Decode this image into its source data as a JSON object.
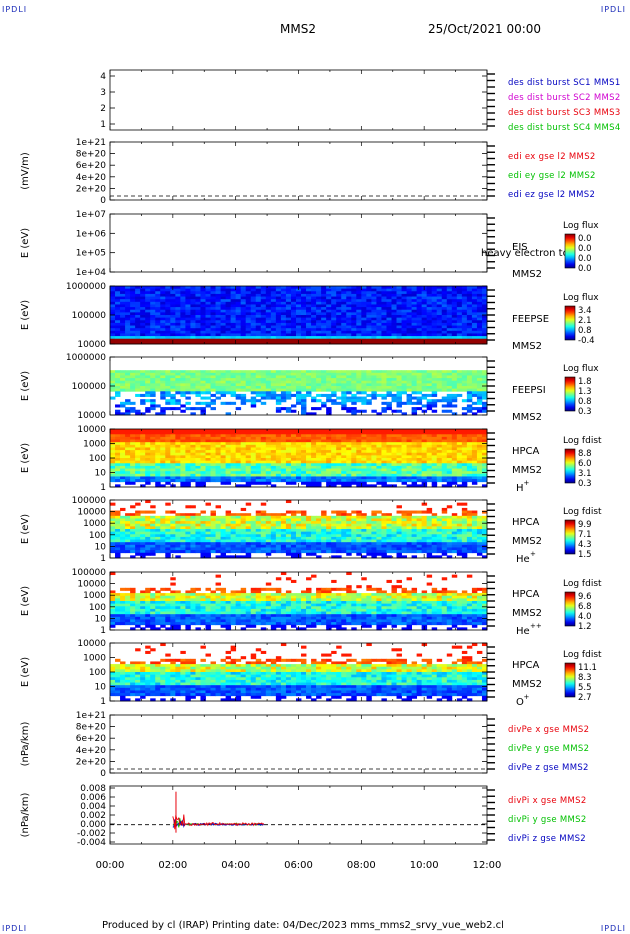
{
  "corners": {
    "tl": "IPDLI",
    "tr": "IPDLI",
    "bl": "IPDLI",
    "br": "IPDLI"
  },
  "header": {
    "spacecraft": "MMS2",
    "date": "25/Oct/2021 00:00"
  },
  "footer": {
    "text": "Produced by cl (IRAP)   Printing date: 04/Dec/2023   mms_mms2_srvy_vue_web2.cl"
  },
  "colors": {
    "red": "#e8000b",
    "green": "#00c000",
    "blue": "#0000c0",
    "magenta": "#d000d0"
  },
  "chart_data": [
    {
      "id": "burst",
      "type": "line",
      "yticks": [
        "1",
        "2",
        "3",
        "4"
      ],
      "legend": [
        {
          "text": "des dist burst SC1 MMS1",
          "color": "#0000c0"
        },
        {
          "text": "des dist burst SC2 MMS2",
          "color": "#d000d0"
        },
        {
          "text": "des dist burst SC3 MMS3",
          "color": "#e8000b"
        },
        {
          "text": "des dist burst SC4 MMS4",
          "color": "#00c000"
        }
      ]
    },
    {
      "id": "edi",
      "type": "line",
      "ylabel": "(mV/m)",
      "yticks": [
        "0",
        "2e+20",
        "4e+20",
        "6e+20",
        "8e+20",
        "1e+21"
      ],
      "legend": [
        {
          "text": "edi ex gse l2 MMS2",
          "color": "#e8000b"
        },
        {
          "text": "edi ey gse l2 MMS2",
          "color": "#00c000"
        },
        {
          "text": "edi ez gse l2 MMS2",
          "color": "#0000c0"
        }
      ]
    },
    {
      "id": "eis",
      "type": "heatmap",
      "ylabel": "E (eV)",
      "yticks": [
        "1e+04",
        "1e+05",
        "1e+06",
        "1e+07"
      ],
      "inst": "EIS",
      "sc": "MMS2",
      "overlay": "heavy electron to",
      "cbar_title": "Log flux",
      "cbar_ticks": [
        "0.0",
        "0.0",
        "0.0",
        "0.0"
      ]
    },
    {
      "id": "feepse",
      "type": "heatmap",
      "ylabel": "E (eV)",
      "yticks": [
        "10000",
        "100000",
        "1000000"
      ],
      "inst": "FEEPSE",
      "sc": "MMS2",
      "cbar_title": "Log flux",
      "cbar_ticks": [
        "3.4",
        "2.1",
        "0.8",
        "-0.4"
      ]
    },
    {
      "id": "feepsi",
      "type": "heatmap",
      "ylabel": "E (eV)",
      "yticks": [
        "10000",
        "100000",
        "1000000"
      ],
      "inst": "FEEPSI",
      "sc": "MMS2",
      "cbar_title": "Log flux",
      "cbar_ticks": [
        "1.8",
        "1.3",
        "0.8",
        "0.3"
      ]
    },
    {
      "id": "hpca_h",
      "type": "heatmap",
      "ylabel": "E (eV)",
      "yticks": [
        "1",
        "10",
        "100",
        "1000",
        "10000"
      ],
      "inst": "HPCA",
      "sc": "MMS2",
      "species": "H",
      "sup": "+",
      "cbar_title": "Log fdist",
      "cbar_ticks": [
        "8.8",
        "6.0",
        "3.1",
        "0.3"
      ]
    },
    {
      "id": "hpca_he",
      "type": "heatmap",
      "ylabel": "E (eV)",
      "yticks": [
        "1",
        "10",
        "100",
        "1000",
        "10000",
        "100000"
      ],
      "inst": "HPCA",
      "sc": "MMS2",
      "species": "He",
      "sup": "+",
      "cbar_title": "Log fdist",
      "cbar_ticks": [
        "9.9",
        "7.1",
        "4.3",
        "1.5"
      ]
    },
    {
      "id": "hpca_hepp",
      "type": "heatmap",
      "ylabel": "E (eV)",
      "yticks": [
        "1",
        "10",
        "100",
        "1000",
        "10000",
        "100000"
      ],
      "inst": "HPCA",
      "sc": "MMS2",
      "species": "He",
      "sup": "++",
      "cbar_title": "Log fdist",
      "cbar_ticks": [
        "9.6",
        "6.8",
        "4.0",
        "1.2"
      ]
    },
    {
      "id": "hpca_o",
      "type": "heatmap",
      "ylabel": "E (eV)",
      "yticks": [
        "1",
        "10",
        "100",
        "1000",
        "10000"
      ],
      "inst": "HPCA",
      "sc": "MMS2",
      "species": "O",
      "sup": "+",
      "cbar_title": "Log fdist",
      "cbar_ticks": [
        "11.1",
        "8.3",
        "5.5",
        "2.7"
      ]
    },
    {
      "id": "divpe",
      "type": "line",
      "ylabel": "(nPa/km)",
      "yticks": [
        "0",
        "2e+20",
        "4e+20",
        "6e+20",
        "8e+20",
        "1e+21"
      ],
      "legend": [
        {
          "text": "divPe x gse MMS2",
          "color": "#e8000b"
        },
        {
          "text": "divPe y gse MMS2",
          "color": "#00c000"
        },
        {
          "text": "divPe z gse MMS2",
          "color": "#0000c0"
        }
      ]
    },
    {
      "id": "divpi",
      "type": "line",
      "ylabel": "(nPa/km)",
      "yticks": [
        "-0.004",
        "-0.002",
        "0.000",
        "0.002",
        "0.004",
        "0.006",
        "0.008"
      ],
      "ylim": [
        -0.004,
        0.008
      ],
      "legend": [
        {
          "text": "divPi x gse MMS2",
          "color": "#e8000b"
        },
        {
          "text": "divPi y gse MMS2",
          "color": "#00c000"
        },
        {
          "text": "divPi z gse MMS2",
          "color": "#0000c0"
        }
      ]
    }
  ],
  "xaxis": {
    "ticks": [
      "00:00",
      "02:00",
      "04:00",
      "06:00",
      "08:00",
      "10:00",
      "12:00"
    ],
    "range_hours": [
      0,
      12
    ]
  }
}
